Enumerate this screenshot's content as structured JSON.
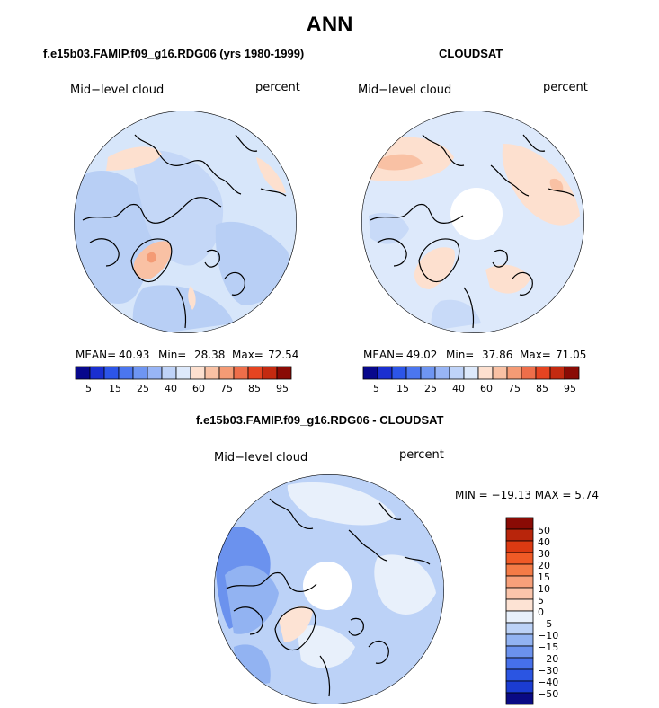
{
  "figure": {
    "title": "ANN",
    "diff_range_text": "MIN = −19.13 MAX =    5.74"
  },
  "colors": {
    "ocean_light": "#d7e6fa",
    "land_mid": "#b8cff5",
    "line": "#000000"
  },
  "chart_data": [
    {
      "type": "heatmap",
      "name": "model-panel",
      "title": "f.e15b03.FAMIP.f09_g16.RDG06 (yrs 1980-1999)",
      "variable": "Mid−level cloud",
      "units": "percent",
      "projection": "north polar stereographic",
      "stats": {
        "mean_label": "MEAN=",
        "mean": "40.93",
        "min_label": "Min=",
        "min": "28.38",
        "max_label": "Max=",
        "max": "72.54"
      },
      "colorbar": {
        "colors": [
          "#08088c",
          "#1a2fd0",
          "#2c55e8",
          "#4b76ef",
          "#6e95f2",
          "#98b5f6",
          "#bfd3f8",
          "#dde9fb",
          "#fde0cf",
          "#f9c1a4",
          "#f49b75",
          "#ee6e4a",
          "#e54421",
          "#c42a10",
          "#8a0b05"
        ],
        "tick_labels": [
          "5",
          "15",
          "25",
          "40",
          "60",
          "75",
          "85",
          "95"
        ]
      }
    },
    {
      "type": "heatmap",
      "name": "obs-panel",
      "title": "CLOUDSAT",
      "variable": "Mid−level cloud",
      "units": "percent",
      "projection": "north polar stereographic",
      "stats": {
        "mean_label": "MEAN=",
        "mean": "49.02",
        "min_label": "Min=",
        "min": "37.86",
        "max_label": "Max=",
        "max": "71.05"
      },
      "colorbar": {
        "colors": [
          "#08088c",
          "#1a2fd0",
          "#2c55e8",
          "#4b76ef",
          "#6e95f2",
          "#98b5f6",
          "#bfd3f8",
          "#dde9fb",
          "#fde0cf",
          "#f9c1a4",
          "#f49b75",
          "#ee6e4a",
          "#e54421",
          "#c42a10",
          "#8a0b05"
        ],
        "tick_labels": [
          "5",
          "15",
          "25",
          "40",
          "60",
          "75",
          "85",
          "95"
        ]
      }
    },
    {
      "type": "heatmap",
      "name": "difference-panel",
      "title": "f.e15b03.FAMIP.f09_g16.RDG06 - CLOUDSAT",
      "variable": "Mid−level cloud",
      "units": "percent",
      "projection": "north polar stereographic",
      "min": -19.13,
      "max": 5.74,
      "colorbar": {
        "colors": [
          "#8a0b05",
          "#b8250b",
          "#dc3a12",
          "#f05a26",
          "#f47b46",
          "#f7a07a",
          "#fbc5ab",
          "#fde3d4",
          "#e8f0fb",
          "#bcd2f7",
          "#92b3f2",
          "#6b92ee",
          "#4670ea",
          "#2b55e2",
          "#1b3cd2",
          "#0a0a84"
        ],
        "tick_labels": [
          "50",
          "40",
          "30",
          "20",
          "15",
          "10",
          "5",
          "0",
          "−5",
          "−10",
          "−15",
          "−20",
          "−30",
          "−40",
          "−50"
        ]
      }
    }
  ]
}
